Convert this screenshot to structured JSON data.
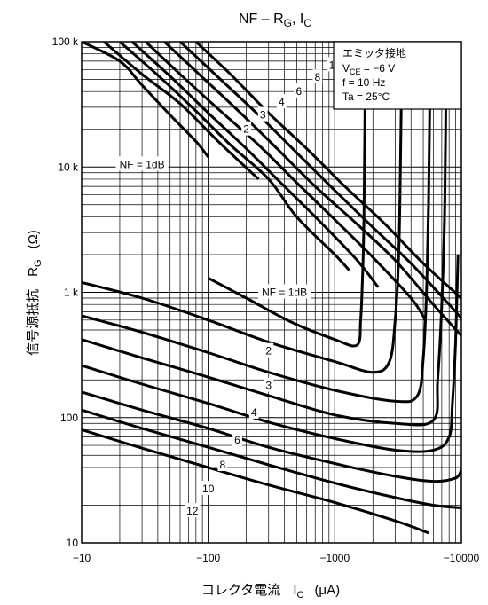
{
  "chart_data": {
    "type": "line",
    "title": {
      "base": "NF – R",
      "sub1": "G",
      "mid": ", I",
      "sub2": "C"
    },
    "xlabel": {
      "text": "コレクタ電流",
      "symbol": "I",
      "sub": "C",
      "unit": "(μA)"
    },
    "ylabel": {
      "text": "信号源抵抗",
      "symbol": "R",
      "sub": "G",
      "unit": "(Ω)"
    },
    "x_scale": "log",
    "y_scale": "log",
    "xlim": [
      -10,
      -10000
    ],
    "ylim": [
      10,
      100000
    ],
    "x_tick_labels": [
      "−10",
      "−100",
      "−1000",
      "−10000"
    ],
    "x_ticks": [
      -10,
      -100,
      -1000,
      -10000
    ],
    "y_tick_labels": [
      "10",
      "100",
      "1 k",
      "10 k",
      "100 k"
    ],
    "y_ticks": [
      10,
      100,
      1000,
      10000,
      100000
    ],
    "grid": true,
    "conditions": {
      "l1": "エミッタ接地",
      "l2a": "V",
      "l2sub": "CE",
      "l2b": " = −6 V",
      "l3": "f = 10 Hz",
      "l4": "Ta = 25°C"
    },
    "series_low": [
      {
        "name": "1",
        "label": "NF = 1dB",
        "x": [
          -100,
          -200,
          -450,
          -1000,
          -1500,
          -1600,
          -1650,
          -1700,
          -1750
        ],
        "y": [
          1300,
          900,
          580,
          420,
          380,
          600,
          1200,
          4000,
          100000
        ]
      },
      {
        "name": "2",
        "label": "2",
        "x": [
          -10,
          -30,
          -100,
          -300,
          -1000,
          -2000,
          -2700,
          -3000,
          -3200,
          -3300,
          -3400
        ],
        "y": [
          1200,
          900,
          600,
          400,
          280,
          230,
          280,
          600,
          2000,
          10000,
          100000
        ]
      },
      {
        "name": "3",
        "label": "3",
        "x": [
          -10,
          -30,
          -100,
          -300,
          -1000,
          -3000,
          -4500,
          -5000,
          -5300,
          -5500,
          -5700
        ],
        "y": [
          650,
          480,
          330,
          230,
          165,
          135,
          150,
          300,
          1000,
          5000,
          100000
        ]
      },
      {
        "name": "4",
        "label": "4",
        "x": [
          -10,
          -30,
          -100,
          -300,
          -1000,
          -3000,
          -6000,
          -6500,
          -7000,
          -7400,
          -7600
        ],
        "y": [
          420,
          300,
          210,
          150,
          105,
          90,
          95,
          200,
          800,
          5000,
          100000
        ]
      },
      {
        "name": "6",
        "label": "6",
        "x": [
          -10,
          -30,
          -100,
          -300,
          -1000,
          -3000,
          -6000,
          -8000,
          -8500,
          -9000,
          -9400
        ],
        "y": [
          260,
          185,
          130,
          92,
          68,
          55,
          55,
          70,
          130,
          400,
          2000
        ]
      },
      {
        "name": "8",
        "label": "8",
        "x": [
          -10,
          -30,
          -100,
          -300,
          -1000,
          -3000,
          -6000,
          -9000,
          -10000
        ],
        "y": [
          160,
          115,
          82,
          58,
          43,
          34,
          31,
          33,
          38
        ]
      },
      {
        "name": "10",
        "label": "10",
        "x": [
          -10,
          -30,
          -100,
          -300,
          -1000,
          -3000,
          -6000,
          -10000
        ],
        "y": [
          115,
          82,
          58,
          42,
          30,
          23,
          20,
          19
        ]
      },
      {
        "name": "12",
        "label": "12",
        "x": [
          -10,
          -30,
          -100,
          -300,
          -1000,
          -3000,
          -5500
        ],
        "y": [
          80,
          57,
          40,
          29,
          21,
          15,
          12
        ]
      }
    ],
    "series_high": [
      {
        "name": "1",
        "label": "NF = 1dB",
        "x": [
          -10,
          -20,
          -30,
          -50,
          -80,
          -100
        ],
        "y": [
          100000,
          70000,
          45000,
          26000,
          16000,
          12000
        ]
      },
      {
        "name": "2",
        "label": "2",
        "x": [
          -15,
          -30,
          -60,
          -120,
          -250
        ],
        "y": [
          100000,
          55000,
          32000,
          16000,
          8000
        ]
      },
      {
        "name": "3",
        "label": "3",
        "x": [
          -20,
          -40,
          -80,
          -150,
          -300,
          -500,
          -1000,
          -1300
        ],
        "y": [
          100000,
          54000,
          28000,
          15000,
          8000,
          4000,
          2000,
          1500
        ]
      },
      {
        "name": "4",
        "label": "4",
        "x": [
          -25,
          -50,
          -100,
          -200,
          -400,
          -800,
          -1500,
          -2200
        ],
        "y": [
          100000,
          53000,
          27000,
          14000,
          7000,
          3500,
          1800,
          1100
        ]
      },
      {
        "name": "6",
        "label": "6",
        "x": [
          -32,
          -60,
          -120,
          -250,
          -500,
          -1000,
          -2000,
          -4000,
          -5200
        ],
        "y": [
          100000,
          55000,
          29000,
          15000,
          7500,
          3800,
          1900,
          900,
          600
        ]
      },
      {
        "name": "8",
        "label": "8",
        "x": [
          -45,
          -90,
          -180,
          -350,
          -700,
          -1500,
          -3000,
          -6000,
          -10000
        ],
        "y": [
          100000,
          52000,
          27000,
          14000,
          7000,
          3500,
          1800,
          800,
          450
        ]
      },
      {
        "name": "10",
        "label": "10",
        "x": [
          -60,
          -120,
          -250,
          -500,
          -1000,
          -2000,
          -4000,
          -8000,
          -10000
        ],
        "y": [
          100000,
          52000,
          26000,
          13000,
          6500,
          3300,
          1700,
          800,
          620
        ]
      },
      {
        "name": "12",
        "label": "12",
        "x": [
          -80,
          -150,
          -300,
          -600,
          -1200,
          -2500,
          -5000,
          -10000
        ],
        "y": [
          100000,
          55000,
          27000,
          14000,
          7000,
          3500,
          1700,
          900
        ]
      }
    ]
  }
}
